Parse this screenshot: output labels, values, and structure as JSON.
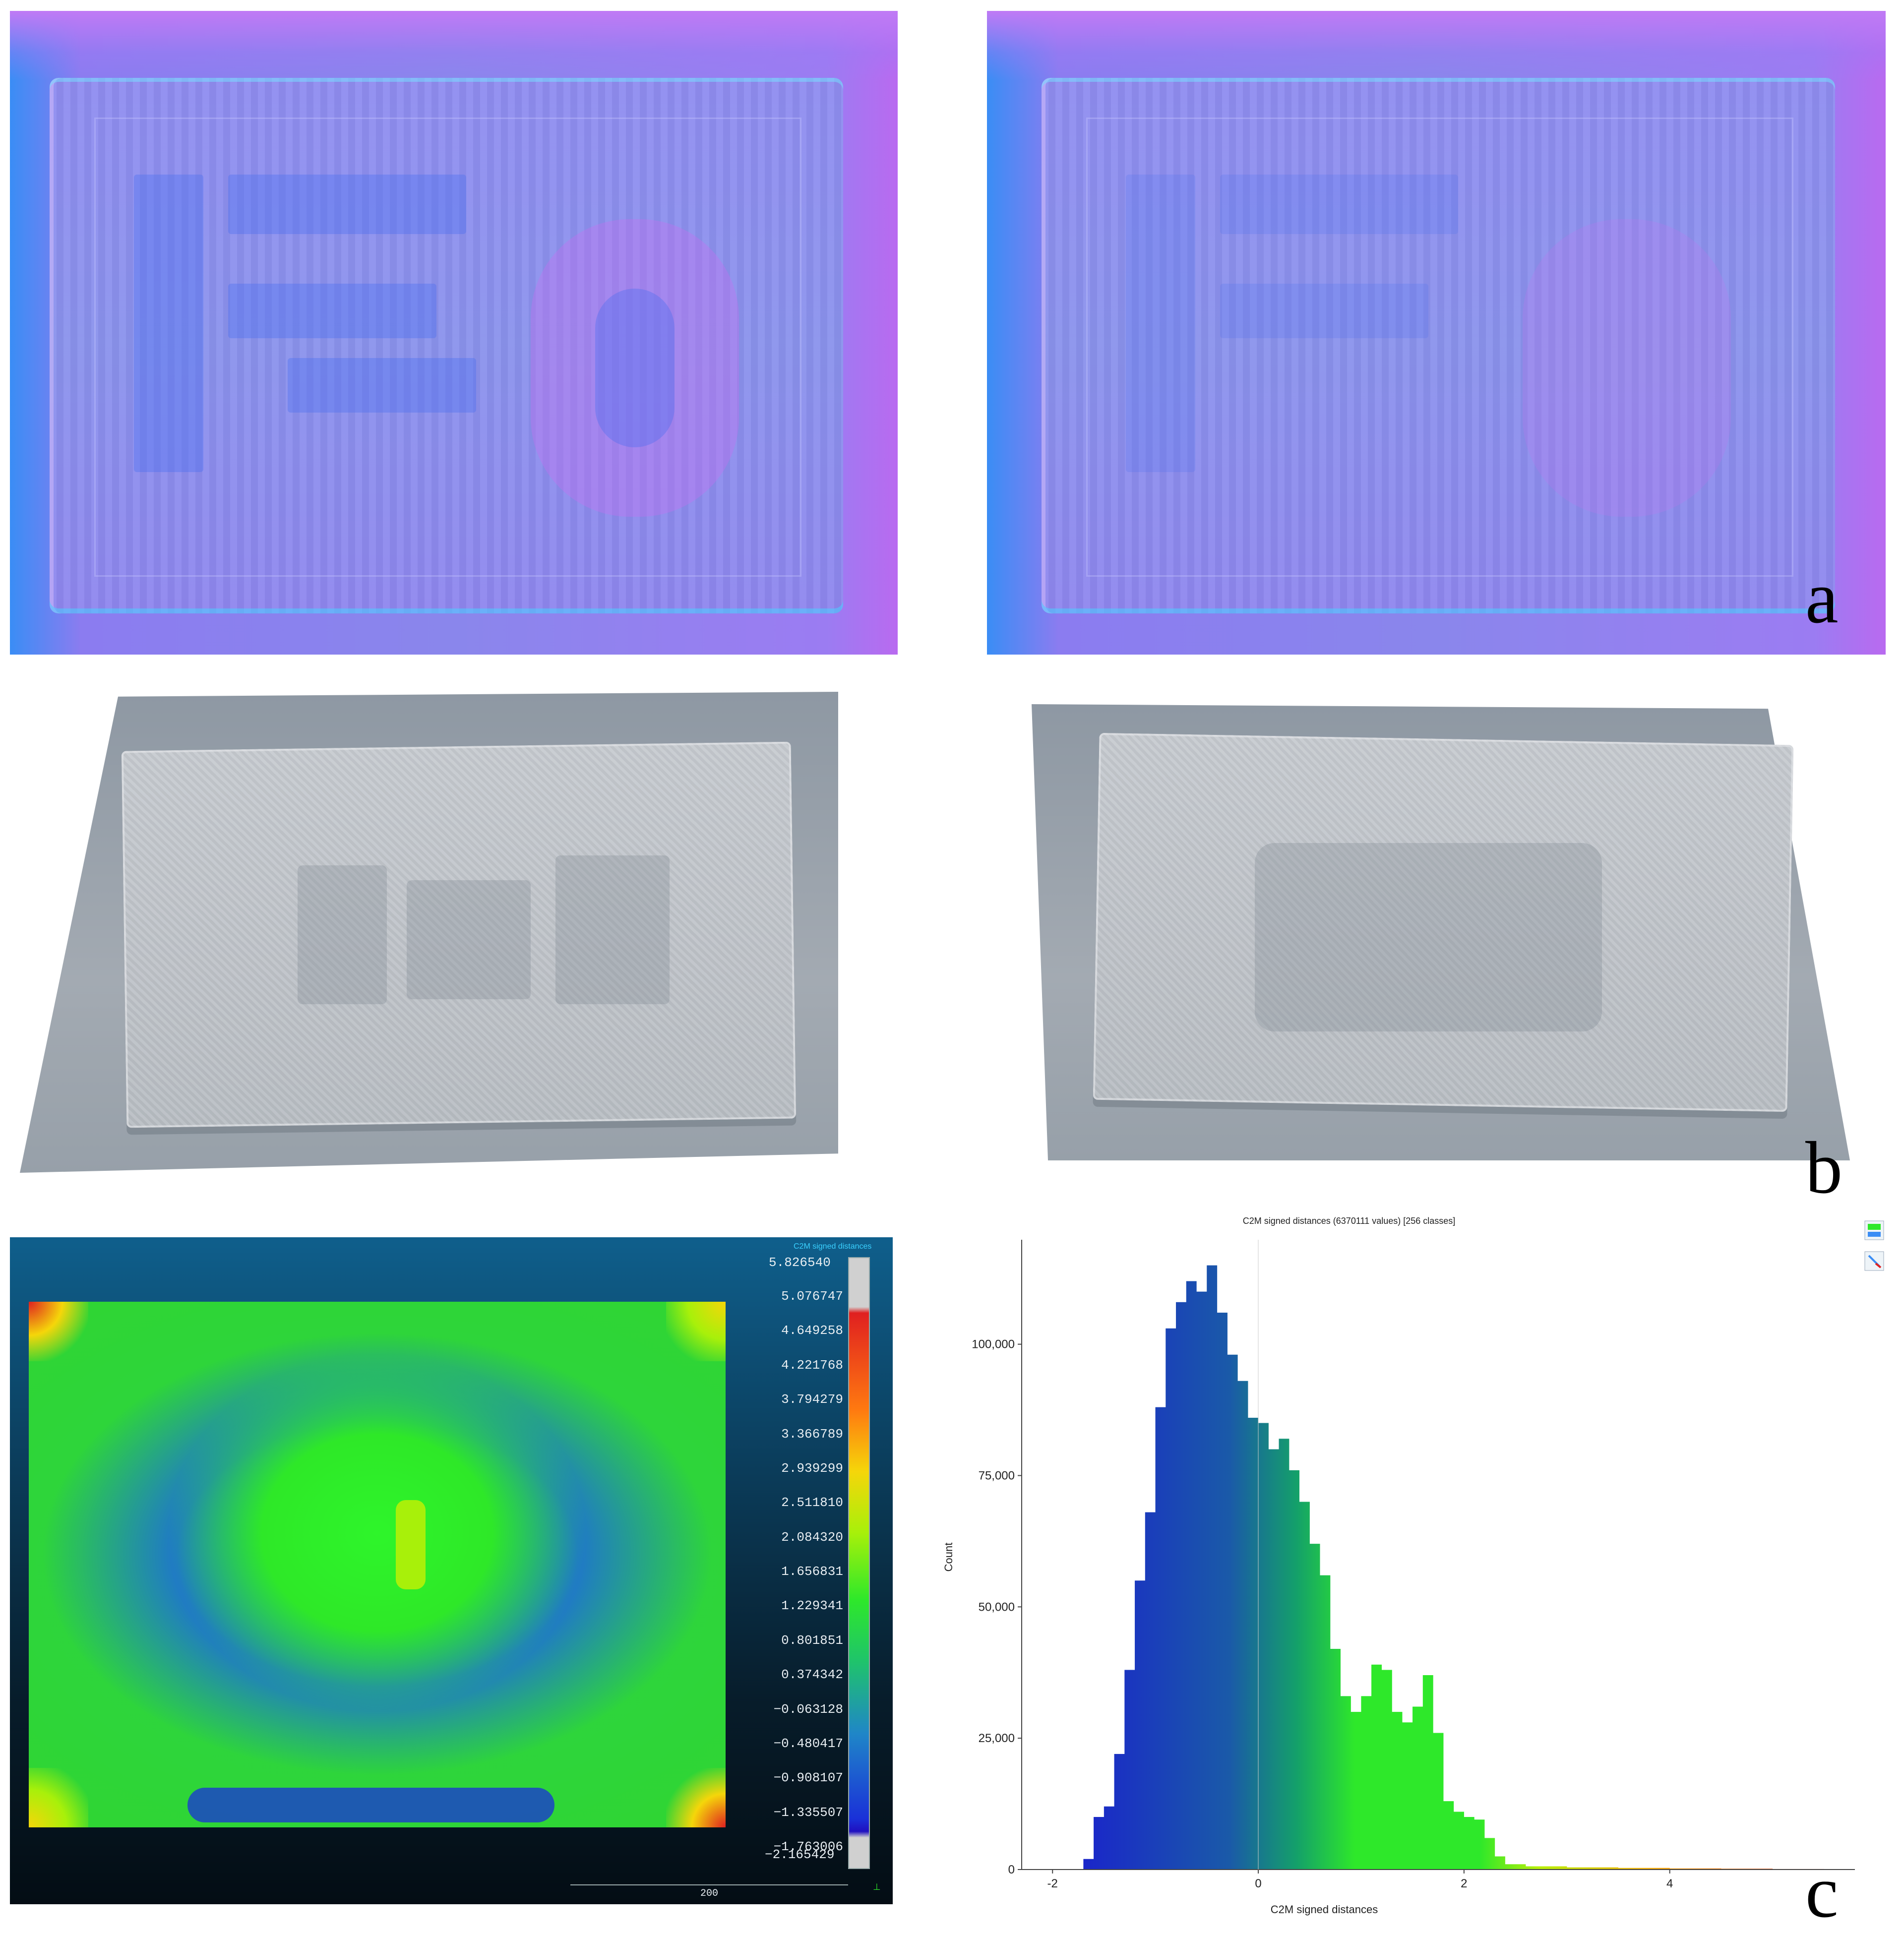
{
  "panel_labels": {
    "a": "a",
    "b": "b",
    "c": "c"
  },
  "colors": {
    "normal_blue": "#3a8df5",
    "normal_violet": "#8a86ec",
    "mesh_gray": "#b9bec4",
    "heat_green": "#2ee82a",
    "heat_blue": "#1f78c8",
    "heat_red": "#e02020"
  },
  "heatmap": {
    "title": "C2M signed distances",
    "scale_max": "5.826540",
    "scale_min": "−2.165429",
    "scale_ticks": [
      "5.076747",
      "4.649258",
      "4.221768",
      "3.794279",
      "3.366789",
      "2.939299",
      "2.511810",
      "2.084320",
      "1.656831",
      "1.229341",
      "0.801851",
      "0.374342",
      "−0.063128",
      "−0.480417",
      "−0.908107",
      "−1.335507",
      "−1.763006"
    ],
    "scale_bar_label": "200"
  },
  "chart_data": {
    "type": "bar",
    "title": "C2M signed distances (6370111 values) [256 classes]",
    "xlabel": "C2M signed distances",
    "ylabel": "Count",
    "xlim": [
      -2.3,
      5.8
    ],
    "ylim": [
      0,
      118000
    ],
    "x_ticks": [
      -2,
      0,
      2,
      4
    ],
    "x_tick_labels": [
      "-2",
      "0",
      "2",
      "4"
    ],
    "y_ticks": [
      0,
      25000,
      50000,
      75000,
      100000
    ],
    "y_tick_labels": [
      "0",
      "25,000",
      "50,000",
      "75,000",
      "100,000"
    ],
    "grid": false,
    "x": [
      -1.7,
      -1.6,
      -1.5,
      -1.4,
      -1.3,
      -1.2,
      -1.1,
      -1.0,
      -0.9,
      -0.8,
      -0.7,
      -0.6,
      -0.5,
      -0.4,
      -0.3,
      -0.2,
      -0.1,
      0.0,
      0.1,
      0.2,
      0.3,
      0.4,
      0.5,
      0.6,
      0.7,
      0.8,
      0.9,
      1.0,
      1.1,
      1.2,
      1.3,
      1.4,
      1.5,
      1.6,
      1.7,
      1.8,
      1.9,
      2.0,
      2.1,
      2.2,
      2.3,
      2.4,
      2.6,
      3.0,
      3.5,
      4.0,
      4.5,
      5.0,
      5.5
    ],
    "values": [
      2000,
      10000,
      12000,
      22000,
      38000,
      55000,
      68000,
      88000,
      103000,
      108000,
      112000,
      110000,
      115000,
      106000,
      98000,
      93000,
      86000,
      85000,
      80000,
      82000,
      76000,
      70000,
      62000,
      56000,
      42000,
      33000,
      30000,
      33000,
      39000,
      38000,
      30000,
      28000,
      31000,
      37000,
      26000,
      13000,
      11000,
      10000,
      9500,
      6000,
      2500,
      1000,
      600,
      400,
      300,
      200,
      150,
      100,
      50
    ]
  }
}
